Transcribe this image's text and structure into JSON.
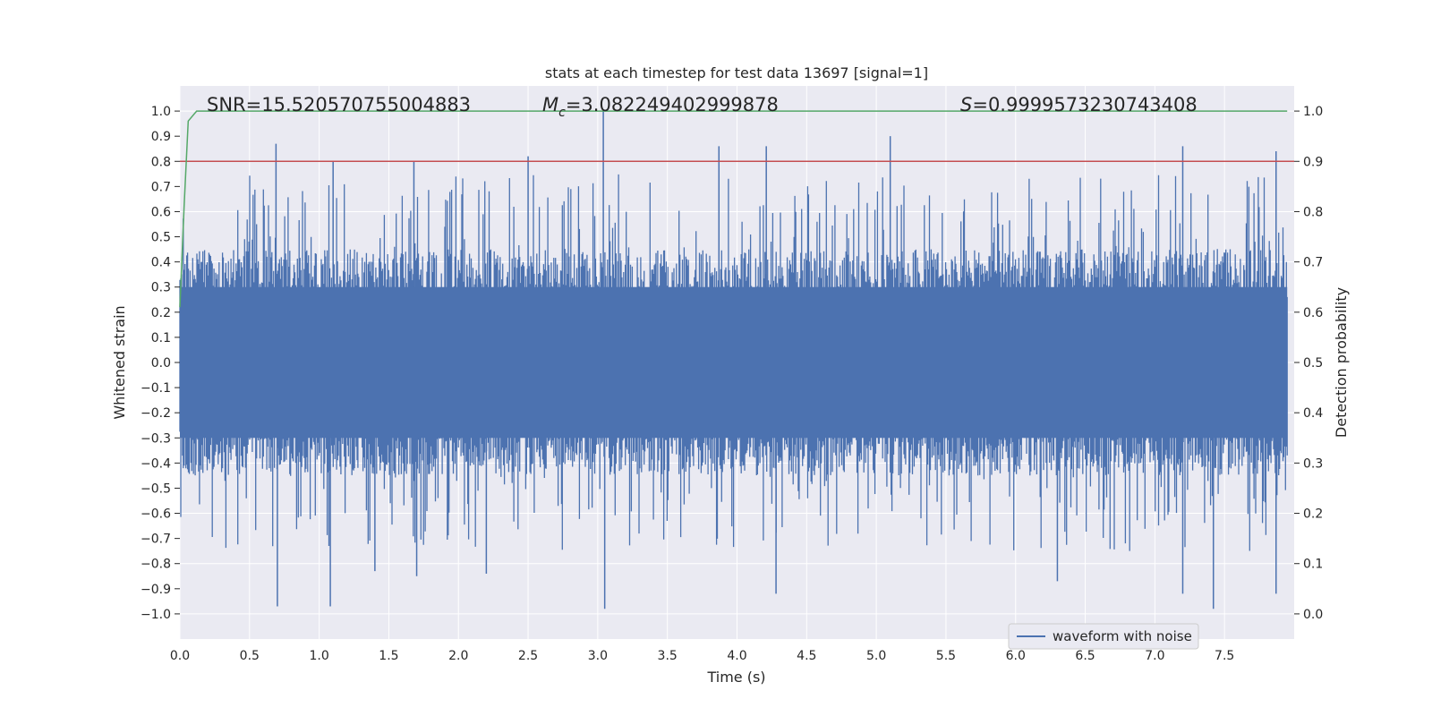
{
  "chart_data": {
    "type": "line",
    "title": "stats at each timestep for test data 13697 [signal=1]",
    "xlabel": "Time (s)",
    "ylabel": "Whitened strain",
    "ylabel_right": "Detection probability",
    "xlim": [
      0.0,
      8.0
    ],
    "ylim": [
      -1.1,
      1.1
    ],
    "ylim_right": [
      -0.05,
      1.05
    ],
    "x_ticks": [
      "0.0",
      "0.5",
      "1.0",
      "1.5",
      "2.0",
      "2.5",
      "3.0",
      "3.5",
      "4.0",
      "4.5",
      "5.0",
      "5.5",
      "6.0",
      "6.5",
      "7.0",
      "7.5"
    ],
    "y_ticks": [
      "1.0",
      "0.9",
      "0.8",
      "0.7",
      "0.6",
      "0.5",
      "0.4",
      "0.3",
      "0.2",
      "0.1",
      "0.0",
      "−0.1",
      "−0.2",
      "−0.3",
      "−0.4",
      "−0.5",
      "−0.6",
      "−0.7",
      "−0.8",
      "−0.9",
      "−1.0"
    ],
    "y_ticks_right": [
      "1.0",
      "0.9",
      "0.8",
      "0.7",
      "0.6",
      "0.5",
      "0.4",
      "0.3",
      "0.2",
      "0.1",
      "0.0"
    ],
    "grid": true,
    "legend_position": "lower-right",
    "annotations": {
      "snr": "SNR=15.520570755004883",
      "mc_symbol": "M",
      "mc_sub": "c",
      "mc_value": "=3.082249402999878",
      "s_symbol": "S",
      "s_value": "=0.9999573230743408"
    },
    "series": [
      {
        "name": "waveform with noise",
        "axis": "left",
        "color": "#4c72b0",
        "style": "dense noise",
        "typical_envelope": [
          -0.45,
          0.45
        ],
        "peaks": [
          {
            "x": 0.69,
            "y": 0.87
          },
          {
            "x": 0.7,
            "y": -0.97
          },
          {
            "x": 1.08,
            "y": -0.97
          },
          {
            "x": 1.1,
            "y": 0.8
          },
          {
            "x": 1.4,
            "y": -0.83
          },
          {
            "x": 1.68,
            "y": 0.8
          },
          {
            "x": 1.7,
            "y": -0.85
          },
          {
            "x": 2.2,
            "y": -0.84
          },
          {
            "x": 2.5,
            "y": 0.82
          },
          {
            "x": 3.04,
            "y": 1.0
          },
          {
            "x": 3.05,
            "y": -0.98
          },
          {
            "x": 3.87,
            "y": 0.86
          },
          {
            "x": 4.21,
            "y": 0.86
          },
          {
            "x": 4.28,
            "y": -0.92
          },
          {
            "x": 5.1,
            "y": 0.9
          },
          {
            "x": 6.3,
            "y": -0.87
          },
          {
            "x": 7.2,
            "y": 0.86
          },
          {
            "x": 7.2,
            "y": -0.92
          },
          {
            "x": 7.42,
            "y": -0.98
          },
          {
            "x": 7.87,
            "y": 0.84
          },
          {
            "x": 7.87,
            "y": -0.92
          }
        ]
      },
      {
        "name": "",
        "axis": "right",
        "color": "#55a868",
        "x": [
          0.0,
          0.03,
          0.06,
          0.12,
          7.95
        ],
        "y": [
          0.61,
          0.81,
          0.98,
          1.0,
          1.0
        ]
      },
      {
        "name": "",
        "axis": "right",
        "color": "#c44e52",
        "x": [
          0.0,
          8.0
        ],
        "y": [
          0.9,
          0.9
        ]
      }
    ]
  }
}
